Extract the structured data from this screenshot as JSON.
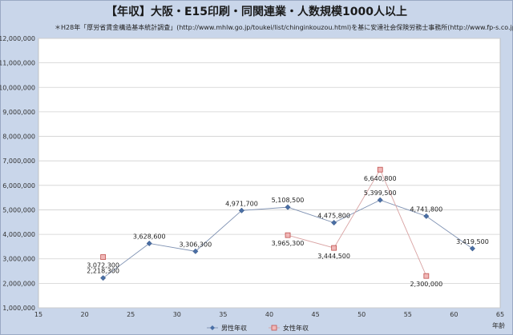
{
  "chart_data": {
    "type": "line",
    "title": "【年収】大阪・E15印刷・同関連業・人数規模1000人以上",
    "subtitle": "＊H28年「厚労省賃金構造基本統計調査」(http://www.mhlw.go.jp/toukei/list/chinginkouzou.html)を基に安達社会保険労務士事務所(http://www.fp-s.co.jp)が作成",
    "xlabel": "年齢",
    "ylabel": "",
    "xlim": [
      15,
      65
    ],
    "ylim": [
      1000000,
      12000000
    ],
    "xticks": [
      "15",
      "20",
      "25",
      "30",
      "35",
      "40",
      "45",
      "50",
      "55",
      "60",
      "65"
    ],
    "yticks": [
      "1,000,000",
      "2,000,000",
      "3,000,000",
      "4,000,000",
      "5,000,000",
      "6,000,000",
      "7,000,000",
      "8,000,000",
      "9,000,000",
      "10,000,000",
      "11,000,000",
      "12,000,000"
    ],
    "grid": true,
    "legend_position": "bottom",
    "series": [
      {
        "name": "男性年収",
        "color": "#4a6fa5",
        "marker": "diamond",
        "points": [
          {
            "x": 22,
            "y": 2218300,
            "label": "2,218,300"
          },
          {
            "x": 27,
            "y": 3628600,
            "label": "3,628,600"
          },
          {
            "x": 32,
            "y": 3306300,
            "label": "3,306,300"
          },
          {
            "x": 37,
            "y": 4971700,
            "label": "4,971,700"
          },
          {
            "x": 42,
            "y": 5108500,
            "label": "5,108,500"
          },
          {
            "x": 47,
            "y": 4475800,
            "label": "4,475,800"
          },
          {
            "x": 52,
            "y": 5399500,
            "label": "5,399,500"
          },
          {
            "x": 57,
            "y": 4741800,
            "label": "4,741,800"
          },
          {
            "x": 62,
            "y": 3419500,
            "label": "3,419,500"
          }
        ]
      },
      {
        "name": "女性年収",
        "color": "#c0504d",
        "marker": "square",
        "segments": [
          [
            {
              "x": 22,
              "y": 3072300,
              "label": "3,072,300"
            }
          ],
          [
            {
              "x": 42,
              "y": 3965300,
              "label": "3,965,300"
            },
            {
              "x": 47,
              "y": 3444500,
              "label": "3,444,500"
            },
            {
              "x": 52,
              "y": 6640800,
              "label": "6,640,800"
            },
            {
              "x": 57,
              "y": 2300000,
              "label": "2,300,000"
            }
          ]
        ]
      }
    ]
  }
}
